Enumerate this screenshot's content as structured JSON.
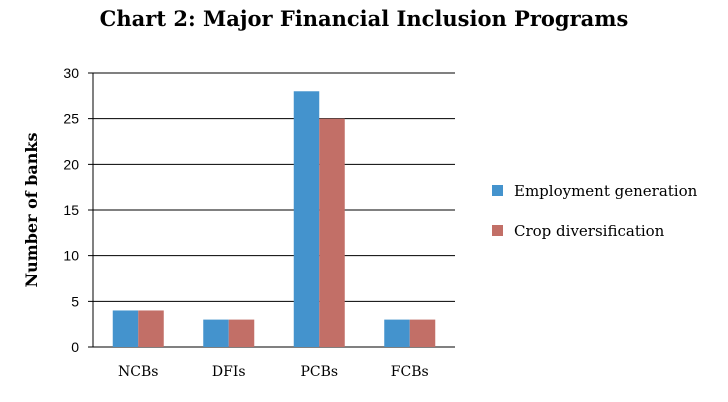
{
  "chart_data": {
    "type": "bar",
    "title": "Chart 2: Major Financial Inclusion Programs",
    "xlabel": "",
    "ylabel": "Number of banks",
    "ylim": [
      0,
      30
    ],
    "yticks": [
      0,
      5,
      10,
      15,
      20,
      25,
      30
    ],
    "grid": true,
    "legend_position": "right",
    "categories": [
      "NCBs",
      "DFIs",
      "PCBs",
      "FCBs"
    ],
    "series": [
      {
        "name": "Employment generation",
        "color": "#4493CD",
        "values": [
          4,
          3,
          28,
          3
        ]
      },
      {
        "name": "Crop diversification",
        "color": "#C26F67",
        "values": [
          4,
          3,
          25,
          3
        ]
      }
    ]
  }
}
